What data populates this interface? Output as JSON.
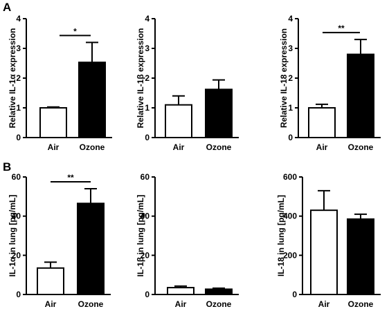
{
  "panel_labels": {
    "a": "A",
    "b": "B"
  },
  "chart_data": [
    {
      "type": "bar",
      "panel": "A",
      "categories": [
        "Air",
        "Ozone"
      ],
      "values": [
        1.0,
        2.53
      ],
      "errors": [
        0.03,
        0.67
      ],
      "bar_colors": [
        "#ffffff",
        "#000000"
      ],
      "ylabel": "Relative IL-1α expression",
      "ylim": [
        0,
        4
      ],
      "yticks": [
        "0",
        "1",
        "2",
        "3",
        "4"
      ],
      "significance": "*"
    },
    {
      "type": "bar",
      "panel": "A",
      "categories": [
        "Air",
        "Ozone"
      ],
      "values": [
        1.1,
        1.62
      ],
      "errors": [
        0.3,
        0.32
      ],
      "bar_colors": [
        "#ffffff",
        "#000000"
      ],
      "ylabel": "Relative IL-1β expression",
      "ylim": [
        0,
        4
      ],
      "yticks": [
        "0",
        "1",
        "2",
        "3",
        "4"
      ],
      "significance": ""
    },
    {
      "type": "bar",
      "panel": "A",
      "categories": [
        "Air",
        "Ozone"
      ],
      "values": [
        1.0,
        2.8
      ],
      "errors": [
        0.12,
        0.5
      ],
      "bar_colors": [
        "#ffffff",
        "#000000"
      ],
      "ylabel": "Relative IL-18 expression",
      "ylim": [
        0,
        4
      ],
      "yticks": [
        "0",
        "1",
        "2",
        "3",
        "4"
      ],
      "significance": "**"
    },
    {
      "type": "bar",
      "panel": "B",
      "categories": [
        "Air",
        "Ozone"
      ],
      "values": [
        13.5,
        46.5
      ],
      "errors": [
        3.0,
        7.5
      ],
      "bar_colors": [
        "#ffffff",
        "#000000"
      ],
      "ylabel": "IL-1α in lung [pg/mL]",
      "ylim": [
        0,
        60
      ],
      "yticks": [
        "0",
        "20",
        "40",
        "60"
      ],
      "significance": "**"
    },
    {
      "type": "bar",
      "panel": "B",
      "categories": [
        "Air",
        "Ozone"
      ],
      "values": [
        3.5,
        2.7
      ],
      "errors": [
        0.8,
        0.5
      ],
      "bar_colors": [
        "#ffffff",
        "#000000"
      ],
      "ylabel": "IL-1β in lung [pg/mL]",
      "ylim": [
        0,
        60
      ],
      "yticks": [
        "0",
        "20",
        "40",
        "60"
      ],
      "significance": ""
    },
    {
      "type": "bar",
      "panel": "B",
      "categories": [
        "Air",
        "Ozone"
      ],
      "values": [
        430,
        385
      ],
      "errors": [
        100,
        25
      ],
      "bar_colors": [
        "#ffffff",
        "#000000"
      ],
      "ylabel": "IL-18 in lung [pg/mL]",
      "ylim": [
        0,
        600
      ],
      "yticks": [
        "0",
        "200",
        "400",
        "600"
      ],
      "significance": ""
    }
  ]
}
